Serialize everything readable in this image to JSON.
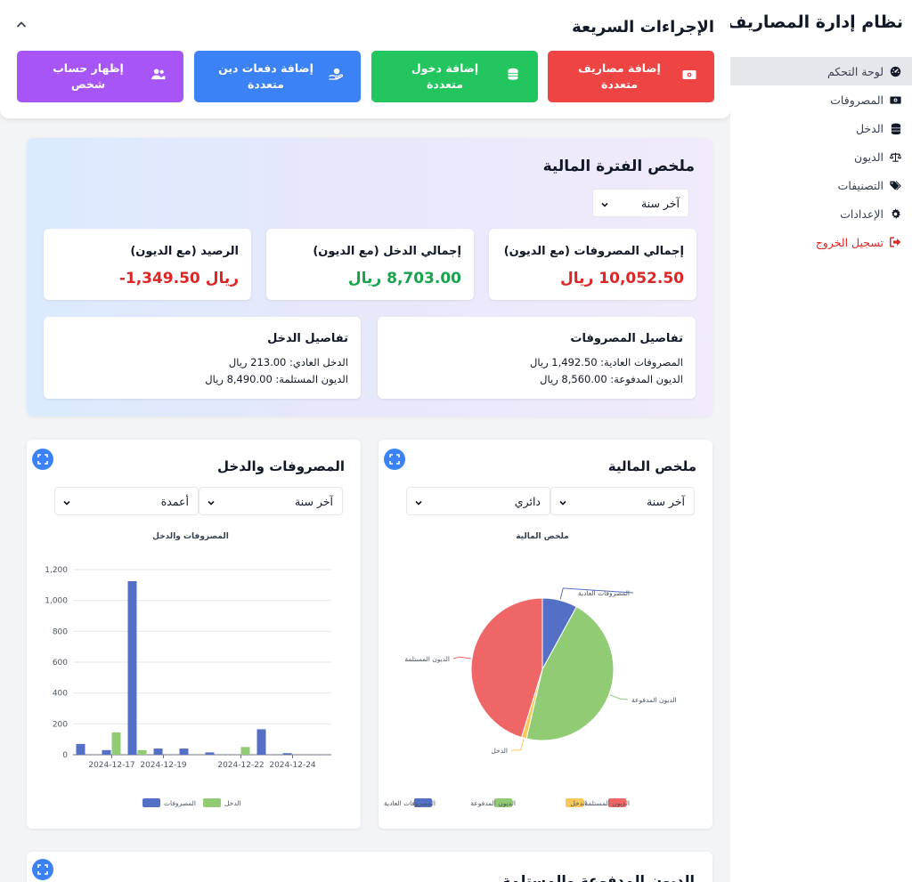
{
  "sidebar": {
    "app_title": "نظام إدارة المصاريف",
    "items": [
      {
        "label": "لوحة التحكم",
        "icon": "dashboard-gauge-icon"
      },
      {
        "label": "المصروفات",
        "icon": "money-bill-icon"
      },
      {
        "label": "الدخل",
        "icon": "coins-icon"
      },
      {
        "label": "الديون",
        "icon": "balance-scale-icon"
      },
      {
        "label": "التصنيفات",
        "icon": "tags-icon"
      },
      {
        "label": "الإعدادات",
        "icon": "gear-icon"
      },
      {
        "label": "تسجيل الخروج",
        "icon": "sign-out-icon"
      }
    ]
  },
  "quick_actions": {
    "title": "الإجراءات السريعة",
    "buttons": [
      {
        "label": "إضافة مصاريف متعددة",
        "color": "#ef4444",
        "icon": "money-bill-icon"
      },
      {
        "label": "إضافة دخول متعددة",
        "color": "#22c55e",
        "icon": "coins-icon"
      },
      {
        "label": "إضافة دفعات دين متعددة",
        "color": "#3b82f6",
        "icon": "hand-holding-icon"
      },
      {
        "label": "إظهار حساب شخص",
        "color": "#a855f7",
        "icon": "users-icon"
      }
    ]
  },
  "summary": {
    "title": "ملخص الفترة المالية",
    "period_select": "آخر سنة",
    "stats": [
      {
        "label": "إجمالي المصروفات (مع الديون)",
        "value": "10,052.50 ريال",
        "color": "#dc2626"
      },
      {
        "label": "إجمالي الدخل (مع الديون)",
        "value": "8,703.00 ريال",
        "color": "#16a34a"
      },
      {
        "label": "الرصيد (مع الديون)",
        "value": "-1,349.50 ريال",
        "color": "#dc2626"
      }
    ],
    "expense_details": {
      "title": "تفاصيل المصروفات",
      "lines": [
        "المصروفات العادية: 1,492.50 ريال",
        "الديون المدفوعة: 8,560.00 ريال"
      ]
    },
    "income_details": {
      "title": "تفاصيل الدخل",
      "lines": [
        "الدخل العادي: 213.00 ريال",
        "الديون المستلمة: 8,490.00 ريال"
      ]
    }
  },
  "finance_chart_card": {
    "title": "ملخص المالية",
    "period_select": "آخر سنة",
    "type_select": "دائري"
  },
  "expense_income_card": {
    "title": "المصروفات والدخل",
    "period_select": "آخر سنة",
    "type_select": "أعمدة"
  },
  "bottom_card": {
    "title": "الديون المدفوعة والمستلمة"
  },
  "chart_data": [
    {
      "type": "pie",
      "title": "ملخص المالية",
      "labels": [
        "المصروفات العادية",
        "الديون المدفوعة",
        "الدخل",
        "الديون المستلمة"
      ],
      "values": [
        1492.5,
        8560,
        213,
        8490
      ],
      "colors": [
        "#5470c6",
        "#91cc75",
        "#fac858",
        "#ee6666"
      ],
      "legend": "bottom"
    },
    {
      "type": "bar",
      "title": "المصروفات والدخل",
      "x": [
        "2024-12-16",
        "2024-12-17",
        "2024-12-18",
        "2024-12-19",
        "2024-12-20",
        "2024-12-21",
        "2024-12-22",
        "2024-12-23",
        "2024-12-24",
        "2024-12-25"
      ],
      "tick_labels": [
        "2024-12-17",
        "2024-12-19",
        "2024-12-22",
        "2024-12-24"
      ],
      "series": [
        {
          "name": "المصروفات",
          "color": "#5470c6",
          "values": [
            70,
            30,
            1125,
            40,
            40,
            15,
            0,
            165,
            10,
            0
          ]
        },
        {
          "name": "الدخل",
          "color": "#91cc75",
          "values": [
            0,
            145,
            30,
            0,
            0,
            0,
            50,
            0,
            0,
            0
          ]
        }
      ],
      "ylim": [
        0,
        1200
      ],
      "yticks": [
        "0",
        "200",
        "400",
        "600",
        "800",
        "1,000",
        "1,200"
      ],
      "grid": true,
      "legend": "bottom"
    }
  ]
}
